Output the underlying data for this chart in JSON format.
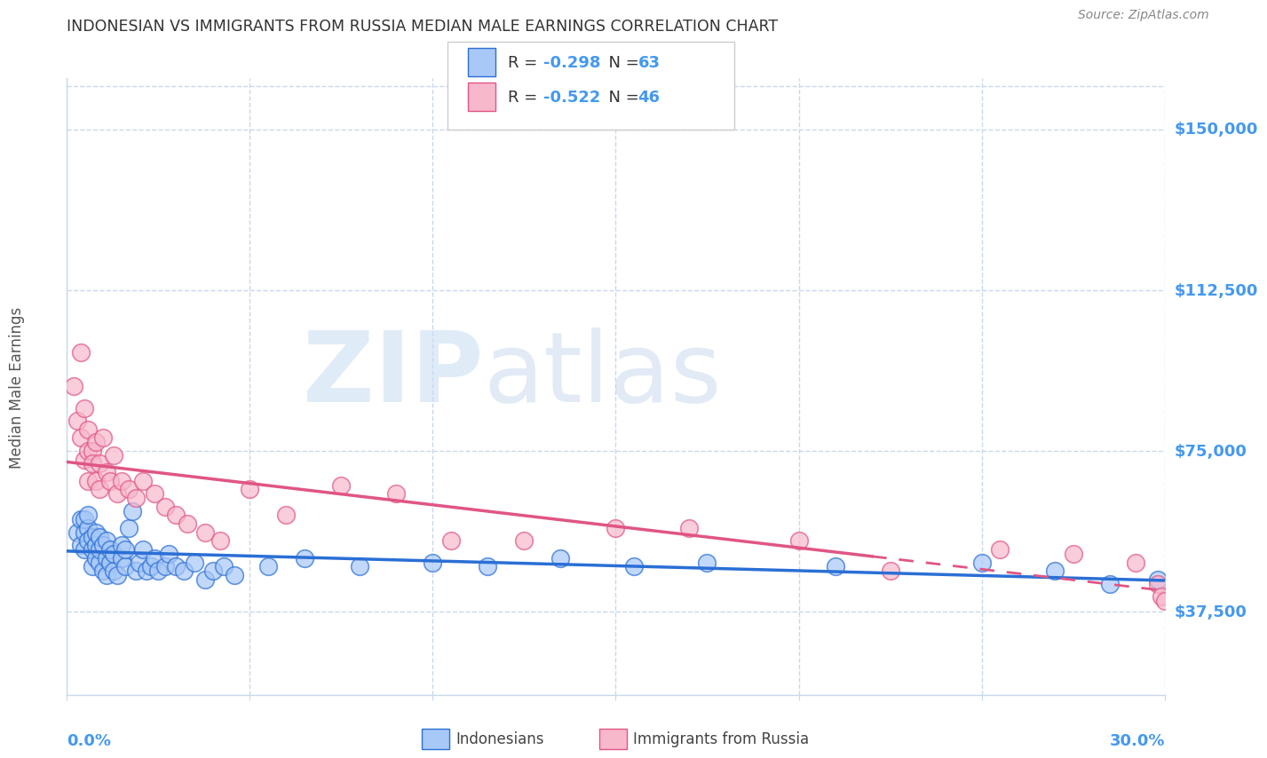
{
  "title": "INDONESIAN VS IMMIGRANTS FROM RUSSIA MEDIAN MALE EARNINGS CORRELATION CHART",
  "source": "Source: ZipAtlas.com",
  "ylabel": "Median Male Earnings",
  "ytick_labels": [
    "$37,500",
    "$75,000",
    "$112,500",
    "$150,000"
  ],
  "ytick_values": [
    37500,
    75000,
    112500,
    150000
  ],
  "ylim": [
    18000,
    162000
  ],
  "xlim": [
    0.0,
    0.3
  ],
  "watermark_zip": "ZIP",
  "watermark_atlas": "atlas",
  "legend_label1": "Indonesians",
  "legend_label2": "Immigrants from Russia",
  "color_blue": "#a8c8f8",
  "color_pink": "#f8b8cc",
  "color_blue_line": "#2a6fd5",
  "color_pink_line": "#e05585",
  "color_axis_blue": "#4499ee",
  "background_color": "#ffffff",
  "grid_color": "#c8d8ee",
  "indonesians_x": [
    0.003,
    0.004,
    0.004,
    0.005,
    0.005,
    0.005,
    0.006,
    0.006,
    0.006,
    0.007,
    0.007,
    0.007,
    0.008,
    0.008,
    0.008,
    0.009,
    0.009,
    0.009,
    0.01,
    0.01,
    0.011,
    0.011,
    0.011,
    0.012,
    0.012,
    0.013,
    0.013,
    0.014,
    0.015,
    0.015,
    0.016,
    0.016,
    0.017,
    0.018,
    0.019,
    0.02,
    0.021,
    0.022,
    0.023,
    0.024,
    0.025,
    0.027,
    0.028,
    0.03,
    0.032,
    0.035,
    0.038,
    0.04,
    0.043,
    0.046,
    0.055,
    0.065,
    0.08,
    0.1,
    0.115,
    0.135,
    0.155,
    0.175,
    0.21,
    0.25,
    0.27,
    0.285,
    0.298
  ],
  "indonesians_y": [
    56000,
    53000,
    59000,
    56000,
    59000,
    52000,
    57000,
    54000,
    60000,
    52000,
    55000,
    48000,
    53000,
    50000,
    56000,
    49000,
    52000,
    55000,
    47000,
    53000,
    50000,
    46000,
    54000,
    49000,
    52000,
    47000,
    51000,
    46000,
    50000,
    53000,
    48000,
    52000,
    57000,
    61000,
    47000,
    49000,
    52000,
    47000,
    48000,
    50000,
    47000,
    48000,
    51000,
    48000,
    47000,
    49000,
    45000,
    47000,
    48000,
    46000,
    48000,
    50000,
    48000,
    49000,
    48000,
    50000,
    48000,
    49000,
    48000,
    49000,
    47000,
    44000,
    45000
  ],
  "russians_x": [
    0.002,
    0.003,
    0.004,
    0.004,
    0.005,
    0.005,
    0.006,
    0.006,
    0.006,
    0.007,
    0.007,
    0.008,
    0.008,
    0.009,
    0.009,
    0.01,
    0.011,
    0.012,
    0.013,
    0.014,
    0.015,
    0.017,
    0.019,
    0.021,
    0.024,
    0.027,
    0.03,
    0.033,
    0.038,
    0.042,
    0.05,
    0.06,
    0.075,
    0.09,
    0.105,
    0.125,
    0.15,
    0.17,
    0.2,
    0.225,
    0.255,
    0.275,
    0.292,
    0.298,
    0.299,
    0.3
  ],
  "russians_y": [
    90000,
    82000,
    78000,
    98000,
    85000,
    73000,
    80000,
    75000,
    68000,
    75000,
    72000,
    68000,
    77000,
    66000,
    72000,
    78000,
    70000,
    68000,
    74000,
    65000,
    68000,
    66000,
    64000,
    68000,
    65000,
    62000,
    60000,
    58000,
    56000,
    54000,
    66000,
    60000,
    67000,
    65000,
    54000,
    54000,
    57000,
    57000,
    54000,
    47000,
    52000,
    51000,
    49000,
    44000,
    41000,
    40000
  ],
  "trendline_pink_solid_end": 0.22
}
